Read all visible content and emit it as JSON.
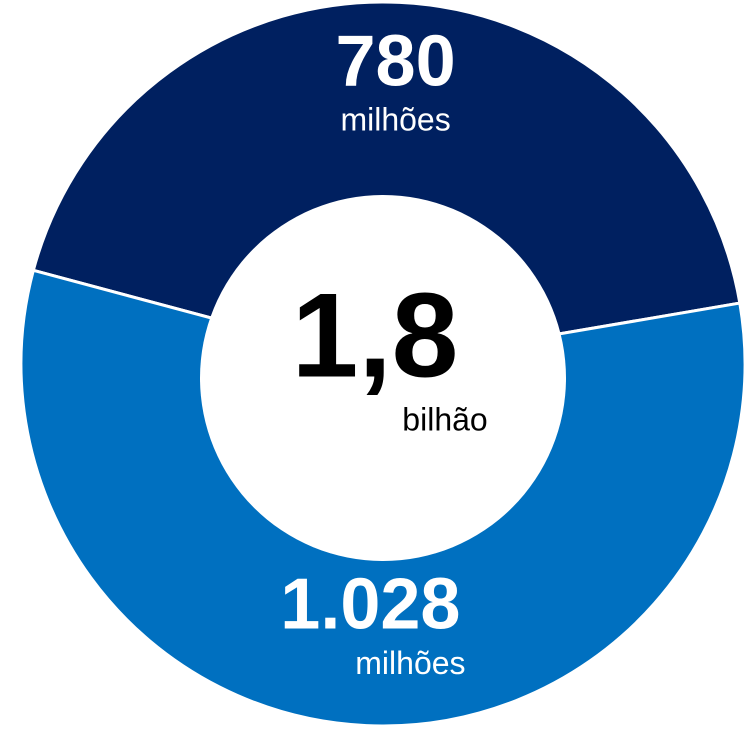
{
  "chart_data": {
    "type": "donut",
    "values": [
      780,
      1028
    ],
    "value_labels": [
      "780",
      "1.028"
    ],
    "unit_labels": [
      "milhões",
      "milhões"
    ],
    "colors": [
      "#002060",
      "#0070c0"
    ],
    "center_label": "1,8",
    "center_unit": "bilhão"
  }
}
